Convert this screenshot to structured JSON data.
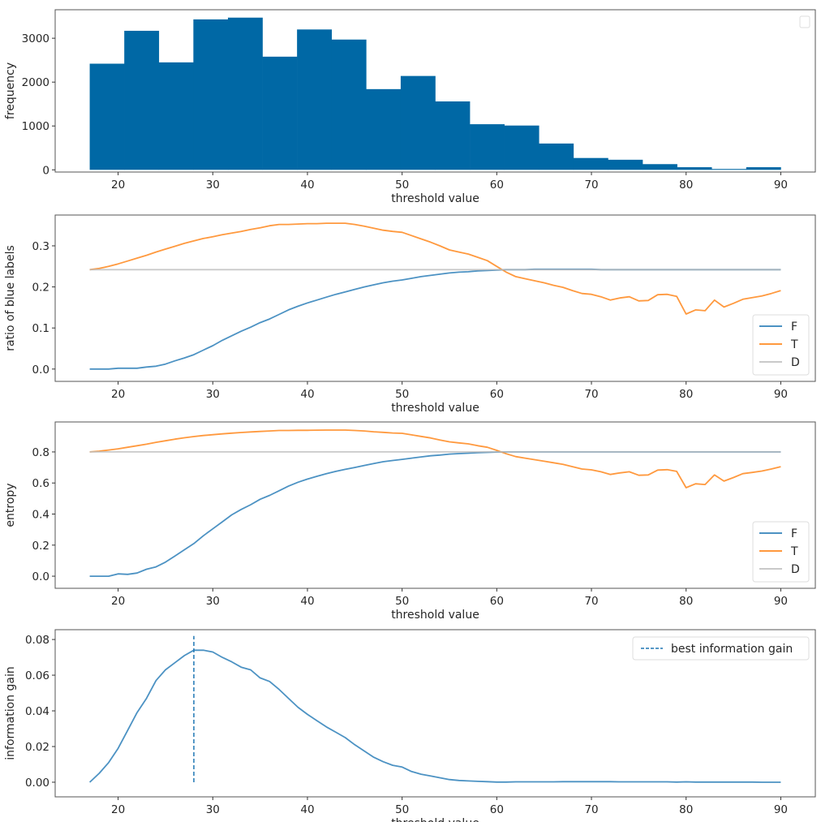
{
  "chart_data": [
    {
      "type": "bar",
      "xlabel": "threshold value",
      "ylabel": "frequency",
      "xlim": [
        13.35,
        93.65
      ],
      "ylim": [
        -50,
        3650
      ],
      "xticks": [
        20,
        30,
        40,
        50,
        60,
        70,
        80,
        90
      ],
      "yticks": [
        0,
        1000,
        2000,
        3000
      ],
      "bin_range": [
        17,
        90
      ],
      "values": [
        2420,
        3170,
        2450,
        3430,
        3470,
        2580,
        3200,
        2970,
        1840,
        2140,
        1560,
        1040,
        1010,
        600,
        270,
        230,
        130,
        60,
        20,
        60
      ],
      "color": "#0068a5",
      "legend": {
        "position": "top-right",
        "entries": []
      },
      "grid": false
    },
    {
      "type": "line",
      "xlabel": "threshold value",
      "ylabel": "ratio of blue labels",
      "xlim": [
        13.35,
        93.65
      ],
      "ylim": [
        -0.03,
        0.375
      ],
      "xticks": [
        20,
        30,
        40,
        50,
        60,
        70,
        80,
        90
      ],
      "yticks": [
        "0.0",
        "0.1",
        "0.2",
        "0.3"
      ],
      "x_start": 17,
      "x_step": 1,
      "legend": {
        "position": "lower-right"
      },
      "grid": false,
      "series": [
        {
          "name": "F",
          "color": "#1f77b4",
          "values": [
            0,
            0,
            0,
            0.002,
            0.002,
            0.002,
            0.005,
            0.007,
            0.012,
            0.02,
            0.027,
            0.035,
            0.046,
            0.057,
            0.07,
            0.081,
            0.092,
            0.102,
            0.113,
            0.122,
            0.133,
            0.144,
            0.153,
            0.161,
            0.168,
            0.175,
            0.182,
            0.188,
            0.194,
            0.2,
            0.205,
            0.21,
            0.214,
            0.217,
            0.221,
            0.225,
            0.228,
            0.231,
            0.234,
            0.236,
            0.237,
            0.239,
            0.24,
            0.241,
            0.242,
            0.242,
            0.242,
            0.243,
            0.243,
            0.243,
            0.243,
            0.243,
            0.243,
            0.243,
            0.242,
            0.242,
            0.242,
            0.242,
            0.242,
            0.242,
            0.242,
            0.242,
            0.242,
            0.242,
            0.242,
            0.242,
            0.242,
            0.242,
            0.242,
            0.242,
            0.242,
            0.242,
            0.242,
            0.242
          ]
        },
        {
          "name": "T",
          "color": "#ff7f0e",
          "values": [
            0.242,
            0.245,
            0.25,
            0.256,
            0.263,
            0.27,
            0.277,
            0.285,
            0.292,
            0.299,
            0.306,
            0.312,
            0.318,
            0.322,
            0.327,
            0.331,
            0.335,
            0.34,
            0.344,
            0.349,
            0.352,
            0.352,
            0.353,
            0.354,
            0.354,
            0.355,
            0.355,
            0.355,
            0.352,
            0.348,
            0.343,
            0.338,
            0.335,
            0.333,
            0.325,
            0.317,
            0.309,
            0.3,
            0.29,
            0.285,
            0.28,
            0.272,
            0.264,
            0.25,
            0.236,
            0.225,
            0.22,
            0.215,
            0.21,
            0.204,
            0.199,
            0.191,
            0.184,
            0.182,
            0.176,
            0.168,
            0.173,
            0.176,
            0.166,
            0.167,
            0.181,
            0.182,
            0.177,
            0.134,
            0.144,
            0.142,
            0.168,
            0.151,
            0.16,
            0.17,
            0.174,
            0.178,
            0.184,
            0.191
          ]
        },
        {
          "name": "D",
          "color": "#bbbbbb",
          "constant": 0.242
        }
      ]
    },
    {
      "type": "line",
      "xlabel": "threshold value",
      "ylabel": "entropy",
      "xlim": [
        13.35,
        93.65
      ],
      "ylim": [
        -0.078,
        0.993
      ],
      "xticks": [
        20,
        30,
        40,
        50,
        60,
        70,
        80,
        90
      ],
      "yticks": [
        "0.0",
        "0.2",
        "0.4",
        "0.6",
        "0.8"
      ],
      "x_start": 17,
      "x_step": 1,
      "legend": {
        "position": "lower-right"
      },
      "grid": false,
      "series": [
        {
          "name": "F",
          "color": "#1f77b4",
          "values": [
            0,
            0,
            0,
            0.015,
            0.012,
            0.02,
            0.045,
            0.06,
            0.09,
            0.13,
            0.17,
            0.21,
            0.26,
            0.305,
            0.35,
            0.395,
            0.43,
            0.46,
            0.495,
            0.52,
            0.55,
            0.58,
            0.605,
            0.625,
            0.643,
            0.66,
            0.675,
            0.688,
            0.7,
            0.713,
            0.725,
            0.737,
            0.745,
            0.752,
            0.76,
            0.768,
            0.775,
            0.78,
            0.786,
            0.789,
            0.792,
            0.795,
            0.797,
            0.799,
            0.8,
            0.8,
            0.8,
            0.8,
            0.8,
            0.8,
            0.8,
            0.8,
            0.8,
            0.8,
            0.8,
            0.8,
            0.8,
            0.8,
            0.8,
            0.8,
            0.8,
            0.8,
            0.8,
            0.8,
            0.8,
            0.8,
            0.8,
            0.8,
            0.8,
            0.8,
            0.8,
            0.8,
            0.8,
            0.8
          ]
        },
        {
          "name": "T",
          "color": "#ff7f0e",
          "values": [
            0.8,
            0.805,
            0.812,
            0.82,
            0.83,
            0.84,
            0.85,
            0.862,
            0.872,
            0.882,
            0.891,
            0.899,
            0.906,
            0.911,
            0.916,
            0.921,
            0.925,
            0.929,
            0.932,
            0.935,
            0.938,
            0.938,
            0.939,
            0.939,
            0.94,
            0.941,
            0.941,
            0.941,
            0.938,
            0.935,
            0.93,
            0.926,
            0.922,
            0.92,
            0.91,
            0.9,
            0.89,
            0.877,
            0.865,
            0.858,
            0.852,
            0.84,
            0.83,
            0.81,
            0.788,
            0.77,
            0.76,
            0.75,
            0.74,
            0.73,
            0.72,
            0.705,
            0.69,
            0.685,
            0.672,
            0.655,
            0.665,
            0.672,
            0.65,
            0.652,
            0.683,
            0.686,
            0.675,
            0.57,
            0.595,
            0.59,
            0.652,
            0.612,
            0.635,
            0.66,
            0.668,
            0.677,
            0.69,
            0.705
          ]
        },
        {
          "name": "D",
          "color": "#bbbbbb",
          "constant": 0.8
        }
      ]
    },
    {
      "type": "line",
      "xlabel": "threshold value",
      "ylabel": "information gain",
      "xlim": [
        13.35,
        93.65
      ],
      "ylim": [
        -0.0082,
        0.0855
      ],
      "xticks": [
        20,
        30,
        40,
        50,
        60,
        70,
        80,
        90
      ],
      "yticks": [
        "0.00",
        "0.02",
        "0.04",
        "0.06",
        "0.08"
      ],
      "x_start": 17,
      "x_step": 1,
      "legend": {
        "position": "top-right"
      },
      "grid": false,
      "series": [
        {
          "color": "#1f77b4",
          "values": [
            0,
            0.005,
            0.011,
            0.019,
            0.029,
            0.039,
            0.047,
            0.057,
            0.063,
            0.067,
            0.071,
            0.074,
            0.074,
            0.073,
            0.07,
            0.0675,
            0.0645,
            0.063,
            0.0585,
            0.0565,
            0.052,
            0.047,
            0.042,
            0.038,
            0.0345,
            0.031,
            0.028,
            0.025,
            0.021,
            0.0175,
            0.014,
            0.0115,
            0.0095,
            0.0085,
            0.006,
            0.0045,
            0.0035,
            0.0025,
            0.0015,
            0.001,
            0.0007,
            0.0005,
            0.0003,
            0.0001,
            0.0001,
            0.0002,
            0.0002,
            0.0002,
            0.0002,
            0.0002,
            0.0003,
            0.0003,
            0.0003,
            0.0003,
            0.0003,
            0.0003,
            0.0002,
            0.0002,
            0.0002,
            0.0002,
            0.0002,
            0.0002,
            0.0001,
            0.0002,
            0.0001,
            0.0001,
            0.0001,
            0.0001,
            0.0001,
            0.0001,
            0.0001,
            0,
            0,
            0
          ]
        }
      ],
      "vline": {
        "name": "best information gain",
        "x": 28,
        "y_range": [
          0,
          0.082
        ],
        "color": "#1f77b4",
        "style": "dashed"
      }
    }
  ]
}
